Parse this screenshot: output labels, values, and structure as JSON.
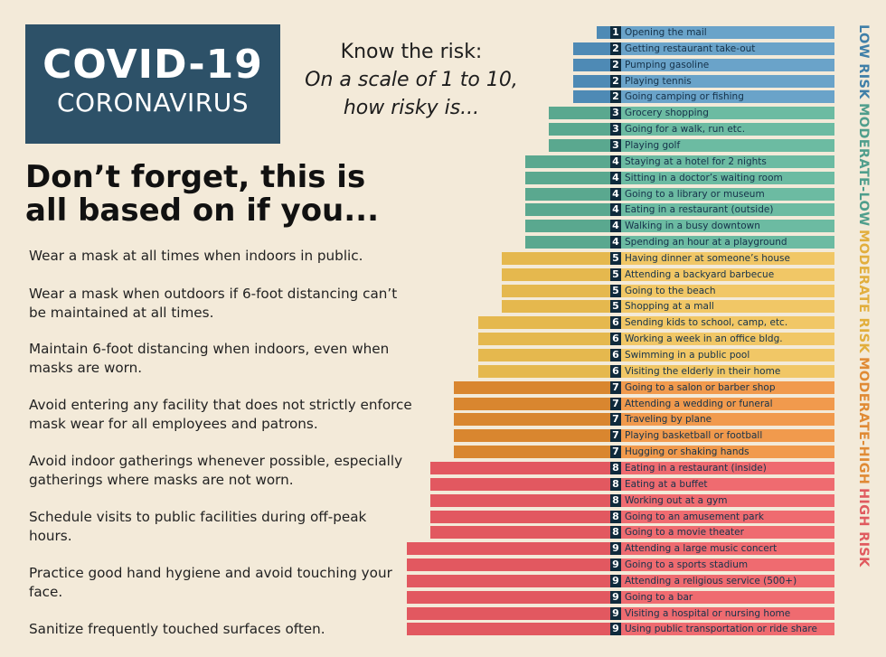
{
  "logo": {
    "title": "COVID-19",
    "subtitle": "CORONAVIRUS"
  },
  "question": {
    "line1": "Know the risk:",
    "line2": "On a scale of 1 to 10,",
    "line3": "how risky is..."
  },
  "headline": "Don’t forget, this is all based on if you...",
  "tips": [
    "Wear a mask at all times when indoors in public.",
    "Wear a mask when outdoors if 6-foot distancing can’t be maintained at all times.",
    "Maintain 6-foot distancing when indoors, even when masks are worn.",
    "Avoid entering any facility that does not strictly enforce mask wear for all employees and patrons.",
    "Avoid indoor gatherings whenever possible, especially gatherings where masks are not worn.",
    "Schedule visits to public facilities during off-peak hours.",
    "Practice good hand hygiene and avoid touching your face.",
    "Sanitize frequently touched surfaces often."
  ],
  "risk_legend": [
    {
      "label": "LOW RISK",
      "color": "#3f7fa8"
    },
    {
      "label": "MODERATE-LOW",
      "color": "#4f9e8c"
    },
    {
      "label": "MODERATE RISK",
      "color": "#e2ae3c"
    },
    {
      "label": "MODERATE-HIGH",
      "color": "#e08a34"
    },
    {
      "label": "HIGH RISK",
      "color": "#e05a5f"
    }
  ],
  "level_colors": {
    "1": "#6aa3c9",
    "2": "#6aa3c9",
    "3": "#6cbba2",
    "4": "#6cbba2",
    "5": "#f1c766",
    "6": "#f1c766",
    "7": "#f19a4d",
    "8": "#ef6b70",
    "9": "#ef6b70"
  },
  "level_left_colors": {
    "1": "#4e8ab5",
    "2": "#4e8ab5",
    "3": "#5aa88f",
    "4": "#5aa88f",
    "5": "#e5b84e",
    "6": "#e5b84e",
    "7": "#d9862f",
    "8": "#e25860",
    "9": "#e25860"
  },
  "chart_data": {
    "type": "bar",
    "title": "Know the risk: On a scale of 1 to 10, how risky is...",
    "categories": [
      "Opening the mail",
      "Getting restaurant take-out",
      "Pumping gasoline",
      "Playing tennis",
      "Going camping or fishing",
      "Grocery shopping",
      "Going for a walk, run etc.",
      "Playing golf",
      "Staying at a hotel for 2 nights",
      "Sitting in a doctor’s waiting room",
      "Going to a library or museum",
      "Eating in a restaurant (outside)",
      "Walking in a busy downtown",
      "Spending an hour at a playground",
      "Having dinner at someone’s house",
      "Attending a backyard barbecue",
      "Going to the beach",
      "Shopping at a mall",
      "Sending kids to school, camp, etc.",
      "Working a week in an office bldg.",
      "Swimming in a public pool",
      "Visiting the elderly in their home",
      "Going to a salon or barber shop",
      "Attending a wedding or funeral",
      "Traveling by plane",
      "Playing basketball or football",
      "Hugging or shaking hands",
      "Eating in a restaurant (inside)",
      "Eating at a buffet",
      "Working out at a gym",
      "Going to an amusement park",
      "Going to a movie theater",
      "Attending a large music concert",
      "Going to a sports stadium",
      "Attending a religious service (500+)",
      "Going to a bar",
      "Visiting a hospital or nursing home",
      "Using public transportation or ride share"
    ],
    "values": [
      1,
      2,
      2,
      2,
      2,
      3,
      3,
      3,
      4,
      4,
      4,
      4,
      4,
      4,
      5,
      5,
      5,
      5,
      6,
      6,
      6,
      6,
      7,
      7,
      7,
      7,
      7,
      8,
      8,
      8,
      8,
      8,
      9,
      9,
      9,
      9,
      9,
      9
    ],
    "xlabel": "",
    "ylabel": "",
    "ylim": [
      1,
      9
    ]
  }
}
